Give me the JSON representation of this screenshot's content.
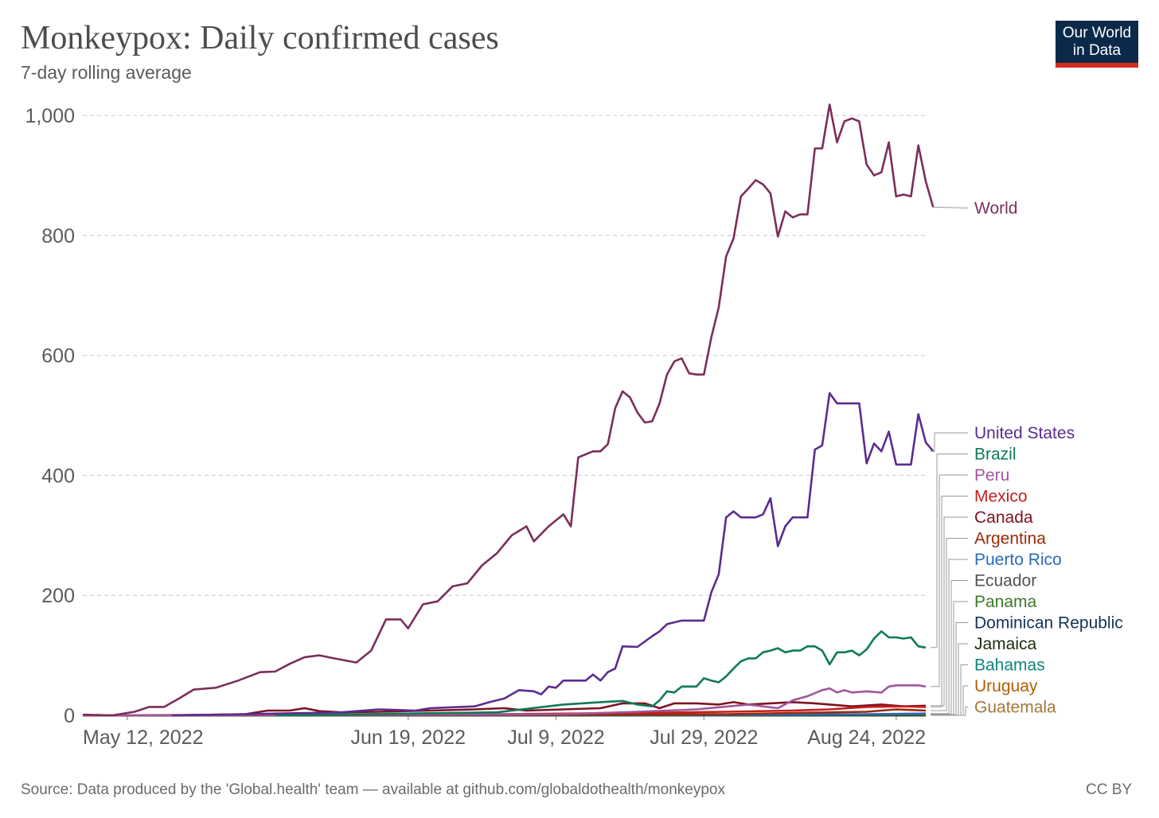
{
  "title": "Monkeypox: Daily confirmed cases",
  "subtitle": "7-day rolling average",
  "logo": {
    "line1": "Our World",
    "line2": "in Data"
  },
  "source": "Source: Data produced by the 'Global.health' team — available at github.com/globaldothealth/monkeypox",
  "license": "CC BY",
  "chart_data": {
    "type": "line",
    "x_start": "2022-05-06",
    "x_end": "2022-08-28",
    "ylim": [
      0,
      1000
    ],
    "y_ticks": [
      0,
      200,
      400,
      600,
      800,
      1000
    ],
    "y_tick_labels": [
      "0",
      "200",
      "400",
      "600",
      "800",
      "1,000"
    ],
    "x_ticks": [
      "2022-05-12",
      "2022-06-19",
      "2022-07-09",
      "2022-07-29",
      "2022-08-24"
    ],
    "x_tick_labels": [
      "May 12, 2022",
      "Jun 19, 2022",
      "Jul 9, 2022",
      "Jul 29, 2022",
      "Aug 24, 2022"
    ],
    "grid": "horizontal-dashed",
    "legend": "right-labels",
    "series": [
      {
        "name": "World",
        "color": "#7b2e5a",
        "points": [
          [
            "2022-05-06",
            1
          ],
          [
            "2022-05-10",
            0
          ],
          [
            "2022-05-13",
            6
          ],
          [
            "2022-05-15",
            14
          ],
          [
            "2022-05-17",
            14
          ],
          [
            "2022-05-19",
            28
          ],
          [
            "2022-05-21",
            43
          ],
          [
            "2022-05-24",
            46
          ],
          [
            "2022-05-27",
            58
          ],
          [
            "2022-05-30",
            72
          ],
          [
            "2022-06-01",
            73
          ],
          [
            "2022-06-03",
            86
          ],
          [
            "2022-06-05",
            97
          ],
          [
            "2022-06-07",
            100
          ],
          [
            "2022-06-09",
            95
          ],
          [
            "2022-06-12",
            88
          ],
          [
            "2022-06-14",
            108
          ],
          [
            "2022-06-16",
            160
          ],
          [
            "2022-06-18",
            160
          ],
          [
            "2022-06-19",
            145
          ],
          [
            "2022-06-21",
            185
          ],
          [
            "2022-06-23",
            190
          ],
          [
            "2022-06-25",
            215
          ],
          [
            "2022-06-27",
            220
          ],
          [
            "2022-06-29",
            250
          ],
          [
            "2022-07-01",
            270
          ],
          [
            "2022-07-03",
            300
          ],
          [
            "2022-07-05",
            315
          ],
          [
            "2022-07-06",
            290
          ],
          [
            "2022-07-08",
            315
          ],
          [
            "2022-07-10",
            335
          ],
          [
            "2022-07-11",
            315
          ],
          [
            "2022-07-12",
            430
          ],
          [
            "2022-07-14",
            440
          ],
          [
            "2022-07-15",
            440
          ],
          [
            "2022-07-16",
            452
          ],
          [
            "2022-07-17",
            512
          ],
          [
            "2022-07-18",
            540
          ],
          [
            "2022-07-19",
            530
          ],
          [
            "2022-07-20",
            505
          ],
          [
            "2022-07-21",
            488
          ],
          [
            "2022-07-22",
            490
          ],
          [
            "2022-07-23",
            520
          ],
          [
            "2022-07-24",
            568
          ],
          [
            "2022-07-25",
            590
          ],
          [
            "2022-07-26",
            595
          ],
          [
            "2022-07-27",
            570
          ],
          [
            "2022-07-28",
            568
          ],
          [
            "2022-07-29",
            568
          ],
          [
            "2022-07-30",
            630
          ],
          [
            "2022-07-31",
            680
          ],
          [
            "2022-08-01",
            765
          ],
          [
            "2022-08-02",
            795
          ],
          [
            "2022-08-03",
            865
          ],
          [
            "2022-08-04",
            878
          ],
          [
            "2022-08-05",
            892
          ],
          [
            "2022-08-06",
            885
          ],
          [
            "2022-08-07",
            870
          ],
          [
            "2022-08-08",
            798
          ],
          [
            "2022-08-09",
            840
          ],
          [
            "2022-08-10",
            830
          ],
          [
            "2022-08-11",
            835
          ],
          [
            "2022-08-12",
            835
          ],
          [
            "2022-08-13",
            945
          ],
          [
            "2022-08-14",
            945
          ],
          [
            "2022-08-15",
            1018
          ],
          [
            "2022-08-16",
            955
          ],
          [
            "2022-08-17",
            990
          ],
          [
            "2022-08-18",
            995
          ],
          [
            "2022-08-19",
            990
          ],
          [
            "2022-08-20",
            918
          ],
          [
            "2022-08-21",
            900
          ],
          [
            "2022-08-22",
            905
          ],
          [
            "2022-08-23",
            955
          ],
          [
            "2022-08-24",
            865
          ],
          [
            "2022-08-25",
            868
          ],
          [
            "2022-08-26",
            865
          ],
          [
            "2022-08-27",
            950
          ],
          [
            "2022-08-28",
            890
          ],
          [
            "2022-08-29",
            847
          ]
        ]
      },
      {
        "name": "United States",
        "color": "#5b2c8f",
        "points": [
          [
            "2022-05-18",
            0
          ],
          [
            "2022-05-28",
            2
          ],
          [
            "2022-06-10",
            5
          ],
          [
            "2022-06-15",
            10
          ],
          [
            "2022-06-20",
            8
          ],
          [
            "2022-06-22",
            12
          ],
          [
            "2022-06-28",
            15
          ],
          [
            "2022-06-30",
            22
          ],
          [
            "2022-07-02",
            28
          ],
          [
            "2022-07-04",
            42
          ],
          [
            "2022-07-06",
            40
          ],
          [
            "2022-07-07",
            35
          ],
          [
            "2022-07-08",
            48
          ],
          [
            "2022-07-09",
            46
          ],
          [
            "2022-07-10",
            58
          ],
          [
            "2022-07-13",
            58
          ],
          [
            "2022-07-14",
            68
          ],
          [
            "2022-07-15",
            58
          ],
          [
            "2022-07-16",
            72
          ],
          [
            "2022-07-17",
            78
          ],
          [
            "2022-07-18",
            115
          ],
          [
            "2022-07-20",
            114
          ],
          [
            "2022-07-22",
            132
          ],
          [
            "2022-07-23",
            140
          ],
          [
            "2022-07-24",
            152
          ],
          [
            "2022-07-26",
            158
          ],
          [
            "2022-07-29",
            158
          ],
          [
            "2022-07-30",
            205
          ],
          [
            "2022-07-31",
            235
          ],
          [
            "2022-08-01",
            330
          ],
          [
            "2022-08-02",
            340
          ],
          [
            "2022-08-03",
            330
          ],
          [
            "2022-08-05",
            330
          ],
          [
            "2022-08-06",
            335
          ],
          [
            "2022-08-07",
            362
          ],
          [
            "2022-08-08",
            282
          ],
          [
            "2022-08-09",
            315
          ],
          [
            "2022-08-10",
            330
          ],
          [
            "2022-08-12",
            330
          ],
          [
            "2022-08-13",
            443
          ],
          [
            "2022-08-14",
            450
          ],
          [
            "2022-08-15",
            537
          ],
          [
            "2022-08-16",
            520
          ],
          [
            "2022-08-19",
            520
          ],
          [
            "2022-08-20",
            420
          ],
          [
            "2022-08-21",
            453
          ],
          [
            "2022-08-22",
            440
          ],
          [
            "2022-08-23",
            473
          ],
          [
            "2022-08-24",
            418
          ],
          [
            "2022-08-26",
            418
          ],
          [
            "2022-08-27",
            502
          ],
          [
            "2022-08-28",
            455
          ],
          [
            "2022-08-29",
            440
          ]
        ]
      },
      {
        "name": "Brazil",
        "color": "#0e7a58",
        "points": [
          [
            "2022-06-01",
            0
          ],
          [
            "2022-07-01",
            5
          ],
          [
            "2022-07-10",
            18
          ],
          [
            "2022-07-15",
            22
          ],
          [
            "2022-07-18",
            24
          ],
          [
            "2022-07-20",
            18
          ],
          [
            "2022-07-22",
            15
          ],
          [
            "2022-07-23",
            25
          ],
          [
            "2022-07-24",
            40
          ],
          [
            "2022-07-25",
            38
          ],
          [
            "2022-07-26",
            48
          ],
          [
            "2022-07-28",
            48
          ],
          [
            "2022-07-29",
            62
          ],
          [
            "2022-07-30",
            58
          ],
          [
            "2022-07-31",
            55
          ],
          [
            "2022-08-01",
            65
          ],
          [
            "2022-08-02",
            78
          ],
          [
            "2022-08-03",
            90
          ],
          [
            "2022-08-04",
            95
          ],
          [
            "2022-08-05",
            95
          ],
          [
            "2022-08-06",
            105
          ],
          [
            "2022-08-07",
            108
          ],
          [
            "2022-08-08",
            112
          ],
          [
            "2022-08-09",
            105
          ],
          [
            "2022-08-10",
            108
          ],
          [
            "2022-08-11",
            108
          ],
          [
            "2022-08-12",
            115
          ],
          [
            "2022-08-13",
            115
          ],
          [
            "2022-08-14",
            108
          ],
          [
            "2022-08-15",
            85
          ],
          [
            "2022-08-16",
            105
          ],
          [
            "2022-08-17",
            105
          ],
          [
            "2022-08-18",
            108
          ],
          [
            "2022-08-19",
            100
          ],
          [
            "2022-08-20",
            110
          ],
          [
            "2022-08-21",
            128
          ],
          [
            "2022-08-22",
            140
          ],
          [
            "2022-08-23",
            130
          ],
          [
            "2022-08-24",
            130
          ],
          [
            "2022-08-25",
            128
          ],
          [
            "2022-08-26",
            130
          ],
          [
            "2022-08-27",
            115
          ],
          [
            "2022-08-28",
            113
          ]
        ]
      },
      {
        "name": "Peru",
        "color": "#a2559c",
        "points": [
          [
            "2022-05-06",
            0
          ],
          [
            "2022-07-10",
            2
          ],
          [
            "2022-07-20",
            6
          ],
          [
            "2022-07-28",
            10
          ],
          [
            "2022-08-04",
            18
          ],
          [
            "2022-08-08",
            12
          ],
          [
            "2022-08-10",
            25
          ],
          [
            "2022-08-12",
            32
          ],
          [
            "2022-08-14",
            42
          ],
          [
            "2022-08-15",
            45
          ],
          [
            "2022-08-16",
            38
          ],
          [
            "2022-08-17",
            42
          ],
          [
            "2022-08-18",
            38
          ],
          [
            "2022-08-20",
            40
          ],
          [
            "2022-08-22",
            38
          ],
          [
            "2022-08-23",
            48
          ],
          [
            "2022-08-24",
            50
          ],
          [
            "2022-08-27",
            50
          ],
          [
            "2022-08-28",
            48
          ]
        ]
      },
      {
        "name": "Mexico",
        "color": "#c61d1d",
        "points": [
          [
            "2022-05-06",
            0
          ],
          [
            "2022-07-01",
            2
          ],
          [
            "2022-07-20",
            4
          ],
          [
            "2022-08-01",
            6
          ],
          [
            "2022-08-10",
            8
          ],
          [
            "2022-08-15",
            10
          ],
          [
            "2022-08-20",
            14
          ],
          [
            "2022-08-25",
            15
          ],
          [
            "2022-08-28",
            14
          ]
        ]
      },
      {
        "name": "Canada",
        "color": "#7f1320",
        "points": [
          [
            "2022-05-18",
            0
          ],
          [
            "2022-05-28",
            2
          ],
          [
            "2022-05-31",
            8
          ],
          [
            "2022-06-03",
            8
          ],
          [
            "2022-06-05",
            12
          ],
          [
            "2022-06-07",
            7
          ],
          [
            "2022-06-10",
            5
          ],
          [
            "2022-06-15",
            6
          ],
          [
            "2022-06-22",
            8
          ],
          [
            "2022-06-28",
            10
          ],
          [
            "2022-07-02",
            12
          ],
          [
            "2022-07-05",
            8
          ],
          [
            "2022-07-10",
            10
          ],
          [
            "2022-07-15",
            12
          ],
          [
            "2022-07-18",
            20
          ],
          [
            "2022-07-21",
            20
          ],
          [
            "2022-07-23",
            12
          ],
          [
            "2022-07-25",
            20
          ],
          [
            "2022-07-28",
            20
          ],
          [
            "2022-07-31",
            18
          ],
          [
            "2022-08-02",
            22
          ],
          [
            "2022-08-04",
            18
          ],
          [
            "2022-08-07",
            20
          ],
          [
            "2022-08-10",
            22
          ],
          [
            "2022-08-13",
            20
          ],
          [
            "2022-08-18",
            15
          ],
          [
            "2022-08-22",
            18
          ],
          [
            "2022-08-25",
            15
          ],
          [
            "2022-08-28",
            16
          ]
        ]
      },
      {
        "name": "Argentina",
        "color": "#9a2a08",
        "points": [
          [
            "2022-05-06",
            0
          ],
          [
            "2022-07-10",
            1
          ],
          [
            "2022-08-01",
            2
          ],
          [
            "2022-08-10",
            4
          ],
          [
            "2022-08-20",
            6
          ],
          [
            "2022-08-24",
            10
          ],
          [
            "2022-08-28",
            8
          ]
        ]
      },
      {
        "name": "Puerto Rico",
        "color": "#286bbb",
        "points": [
          [
            "2022-05-06",
            0
          ],
          [
            "2022-08-01",
            1
          ],
          [
            "2022-08-20",
            2
          ],
          [
            "2022-08-28",
            3
          ]
        ]
      },
      {
        "name": "Ecuador",
        "color": "#525252",
        "points": [
          [
            "2022-05-06",
            0
          ],
          [
            "2022-08-10",
            1
          ],
          [
            "2022-08-28",
            2
          ]
        ]
      },
      {
        "name": "Panama",
        "color": "#3b7a2a",
        "points": [
          [
            "2022-05-06",
            0
          ],
          [
            "2022-08-28",
            1
          ]
        ]
      },
      {
        "name": "Dominican Republic",
        "color": "#123357",
        "points": [
          [
            "2022-05-06",
            0
          ],
          [
            "2022-08-28",
            1
          ]
        ]
      },
      {
        "name": "Jamaica",
        "color": "#1d2b0f",
        "points": [
          [
            "2022-05-06",
            0
          ],
          [
            "2022-08-28",
            0
          ]
        ]
      },
      {
        "name": "Bahamas",
        "color": "#11847e",
        "points": [
          [
            "2022-05-06",
            0
          ],
          [
            "2022-08-28",
            0
          ]
        ]
      },
      {
        "name": "Uruguay",
        "color": "#b35e00",
        "points": [
          [
            "2022-05-06",
            0
          ],
          [
            "2022-08-28",
            0
          ]
        ]
      },
      {
        "name": "Guatemala",
        "color": "#a3773c",
        "points": [
          [
            "2022-05-06",
            0
          ],
          [
            "2022-08-28",
            0
          ]
        ]
      }
    ]
  }
}
